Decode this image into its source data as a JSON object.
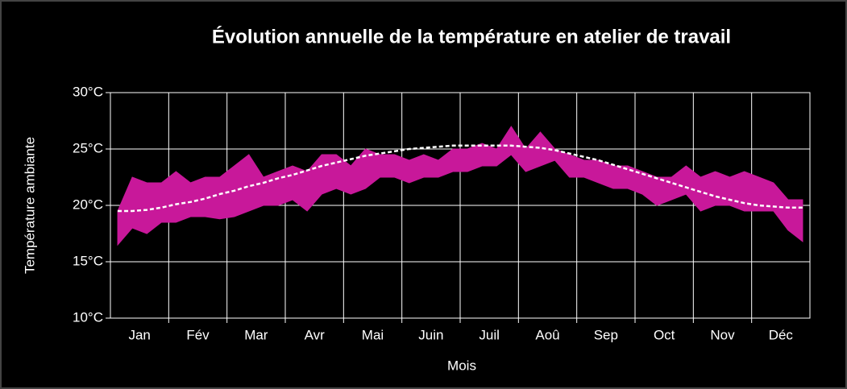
{
  "chart_data": {
    "type": "range",
    "title": "Évolution annuelle de la température en atelier de travail",
    "x_label": "Mois",
    "y_label": "Température ambiante",
    "categories": [
      null,
      null,
      "Jan",
      null,
      null,
      null,
      "Fév",
      null,
      null,
      null,
      "Mar",
      null,
      null,
      null,
      "Avr",
      null,
      null,
      null,
      "Mai",
      null,
      null,
      null,
      "Juin",
      null,
      null,
      null,
      "Juil",
      null,
      null,
      null,
      "Aoû",
      null,
      null,
      null,
      "Sep",
      null,
      null,
      null,
      "Oct",
      null,
      null,
      null,
      "Nov",
      null,
      null,
      null,
      "Déc",
      null
    ],
    "band": {
      "color": "#c8189a",
      "low": [
        16.5,
        18,
        17.5,
        18.5,
        18.5,
        19,
        19,
        18.8,
        19,
        19.5,
        20,
        20,
        20.5,
        19.5,
        21,
        21.5,
        21,
        21.5,
        22.5,
        22.5,
        22,
        22.5,
        22.5,
        23,
        23,
        23.5,
        23.5,
        24.5,
        23,
        23.5,
        24,
        22.5,
        22.5,
        22,
        21.5,
        21.5,
        21,
        20,
        20.5,
        21,
        19.5,
        20,
        20,
        19.5,
        19.5,
        19.5,
        17.8,
        16.8
      ],
      "high": [
        19.5,
        22.5,
        22,
        22,
        23,
        22,
        22.5,
        22.5,
        23.5,
        24.5,
        22.5,
        23,
        23.5,
        23,
        24.5,
        24.5,
        23.5,
        25,
        24.5,
        24.5,
        24,
        24.5,
        24,
        25,
        25,
        25.5,
        25,
        27,
        25,
        26.5,
        25,
        24.5,
        24,
        24,
        23.5,
        23.5,
        23,
        22.5,
        22.5,
        23.5,
        22.5,
        23,
        22.5,
        23,
        22.5,
        22,
        20.5,
        20.5
      ]
    },
    "series": [
      {
        "color": "#ffffff",
        "dashed": true,
        "values": [
          19.5,
          19.5,
          19.6,
          19.8,
          20.1,
          20.3,
          20.6,
          21,
          21.3,
          21.7,
          22,
          22.4,
          22.7,
          23.1,
          23.5,
          23.8,
          24.1,
          24.4,
          24.6,
          24.8,
          25,
          25.1,
          25.2,
          25.3,
          25.3,
          25.3,
          25.3,
          25.3,
          25.2,
          25.1,
          24.9,
          24.6,
          24.3,
          24,
          23.6,
          23.2,
          22.8,
          22.4,
          22,
          21.6,
          21.2,
          20.8,
          20.5,
          20.2,
          20,
          19.9,
          19.8,
          19.8
        ]
      }
    ],
    "ylim": [
      10,
      30
    ],
    "yticks": [
      {
        "value": 10,
        "label": "10°C"
      },
      {
        "value": 15,
        "label": "15°C"
      },
      {
        "value": 20,
        "label": "20°C"
      },
      {
        "value": 25,
        "label": "25°C"
      },
      {
        "value": 30,
        "label": "30°C"
      }
    ],
    "grid": true
  }
}
